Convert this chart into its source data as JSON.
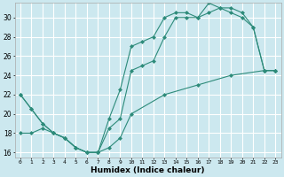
{
  "title": "",
  "xlabel": "Humidex (Indice chaleur)",
  "bg_color": "#cce8ef",
  "grid_color": "#ffffff",
  "line_color": "#2d8b7a",
  "xlim": [
    -0.5,
    23.5
  ],
  "ylim": [
    15.5,
    31.5
  ],
  "xticks": [
    0,
    1,
    2,
    3,
    4,
    5,
    6,
    7,
    8,
    9,
    10,
    11,
    12,
    13,
    14,
    15,
    16,
    17,
    18,
    19,
    20,
    21,
    22,
    23
  ],
  "yticks": [
    16,
    18,
    20,
    22,
    24,
    26,
    28,
    30
  ],
  "line1_x": [
    0,
    1,
    2,
    3,
    4,
    5,
    6,
    7,
    8,
    9,
    10,
    11,
    12,
    13,
    14,
    15,
    16,
    17,
    18,
    19,
    20,
    21,
    22,
    23
  ],
  "line1_y": [
    22,
    20.5,
    19.0,
    18.0,
    17.5,
    16.5,
    16.0,
    16.0,
    19.5,
    22.5,
    27.0,
    27.5,
    28.0,
    30.0,
    30.5,
    30.5,
    30.0,
    31.5,
    31.0,
    30.5,
    30.0,
    29.0,
    24.5,
    24.5
  ],
  "line2_x": [
    0,
    1,
    2,
    3,
    4,
    5,
    6,
    7,
    8,
    9,
    10,
    11,
    12,
    13,
    14,
    15,
    16,
    17,
    18,
    19,
    20,
    21,
    22,
    23
  ],
  "line2_y": [
    22,
    20.5,
    19.0,
    18.0,
    17.5,
    16.5,
    16.0,
    16.0,
    18.5,
    19.5,
    24.5,
    25.0,
    25.5,
    28.0,
    30.0,
    30.0,
    30.0,
    30.5,
    31.0,
    31.0,
    30.5,
    29.0,
    24.5,
    24.5
  ],
  "line3_x": [
    0,
    1,
    2,
    3,
    4,
    5,
    6,
    7,
    8,
    9,
    10,
    13,
    16,
    19,
    22,
    23
  ],
  "line3_y": [
    18.0,
    18.0,
    18.5,
    18.0,
    17.5,
    16.5,
    16.0,
    16.0,
    16.5,
    17.5,
    20.0,
    22.0,
    23.0,
    24.0,
    24.5,
    24.5
  ]
}
